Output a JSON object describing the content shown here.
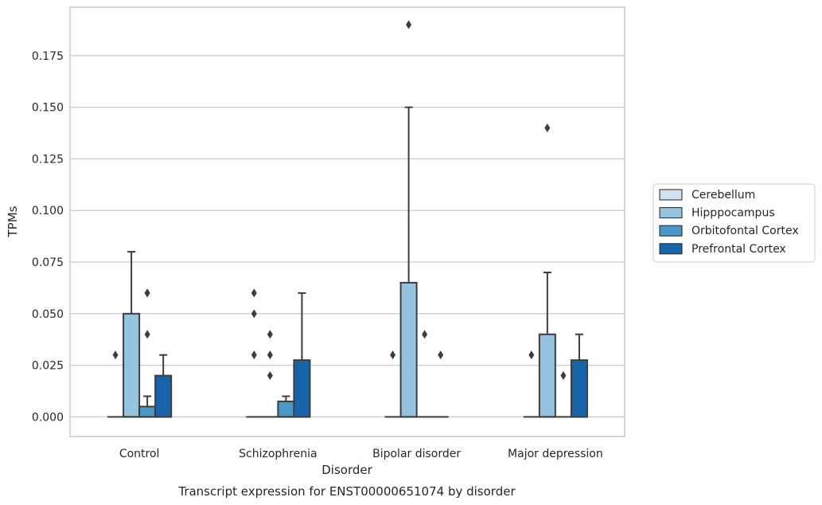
{
  "chart_data": {
    "type": "box",
    "caption": "Transcript expression for ENST00000651074 by disorder",
    "xlabel": "Disorder",
    "ylabel": "TPMs",
    "ylim": [
      -0.0095,
      0.1985
    ],
    "yticks": [
      0.0,
      0.025,
      0.05,
      0.075,
      0.1,
      0.125,
      0.15,
      0.175
    ],
    "ytick_labels": [
      "0.000",
      "0.025",
      "0.050",
      "0.075",
      "0.100",
      "0.125",
      "0.150",
      "0.175"
    ],
    "grid": "horizontal",
    "legend_position": "right",
    "categories": [
      "Control",
      "Schizophrenia",
      "Bipolar disorder",
      "Major depression"
    ],
    "series": [
      {
        "name": "Cerebellum",
        "color": "#d0e1f2",
        "boxes": [
          {
            "q1": 0.0,
            "median": 0.0,
            "q3": 0.0,
            "whisker_low": 0.0,
            "whisker_high": 0.0,
            "outliers": [
              0.03
            ]
          },
          {
            "q1": 0.0,
            "median": 0.0,
            "q3": 0.0,
            "whisker_low": 0.0,
            "whisker_high": 0.0,
            "outliers": [
              0.06,
              0.05,
              0.03
            ]
          },
          {
            "q1": 0.0,
            "median": 0.0,
            "q3": 0.0,
            "whisker_low": 0.0,
            "whisker_high": 0.0,
            "outliers": [
              0.03
            ]
          },
          {
            "q1": 0.0,
            "median": 0.0,
            "q3": 0.0,
            "whisker_low": 0.0,
            "whisker_high": 0.0,
            "outliers": [
              0.03
            ]
          }
        ]
      },
      {
        "name": "Hipppocampus",
        "color": "#94c4df",
        "boxes": [
          {
            "q1": 0.0,
            "median": 0.0,
            "q3": 0.05,
            "whisker_low": 0.0,
            "whisker_high": 0.08,
            "outliers": []
          },
          {
            "q1": 0.0,
            "median": 0.0,
            "q3": 0.0,
            "whisker_low": 0.0,
            "whisker_high": 0.0,
            "outliers": [
              0.04,
              0.03,
              0.02
            ]
          },
          {
            "q1": 0.0,
            "median": 0.0,
            "q3": 0.065,
            "whisker_low": 0.0,
            "whisker_high": 0.15,
            "outliers": [
              0.19
            ]
          },
          {
            "q1": 0.0,
            "median": 0.0,
            "q3": 0.04,
            "whisker_low": 0.0,
            "whisker_high": 0.07,
            "outliers": [
              0.14
            ]
          }
        ]
      },
      {
        "name": "Orbitofontal Cortex",
        "color": "#4a98c9",
        "boxes": [
          {
            "q1": 0.0,
            "median": 0.0,
            "q3": 0.005,
            "whisker_low": 0.0,
            "whisker_high": 0.01,
            "outliers": [
              0.06,
              0.06,
              0.04
            ]
          },
          {
            "q1": 0.0,
            "median": 0.0,
            "q3": 0.0075,
            "whisker_low": 0.0,
            "whisker_high": 0.01,
            "outliers": []
          },
          {
            "q1": 0.0,
            "median": 0.0,
            "q3": 0.0,
            "whisker_low": 0.0,
            "whisker_high": 0.0,
            "outliers": [
              0.04
            ]
          },
          {
            "q1": 0.0,
            "median": 0.0,
            "q3": 0.0,
            "whisker_low": 0.0,
            "whisker_high": 0.0,
            "outliers": [
              0.02
            ]
          }
        ]
      },
      {
        "name": "Prefrontal Cortex",
        "color": "#1764ab",
        "boxes": [
          {
            "q1": 0.0,
            "median": 0.0,
            "q3": 0.02,
            "whisker_low": 0.0,
            "whisker_high": 0.03,
            "outliers": []
          },
          {
            "q1": 0.0,
            "median": 0.0,
            "q3": 0.0275,
            "whisker_low": 0.0,
            "whisker_high": 0.06,
            "outliers": []
          },
          {
            "q1": 0.0,
            "median": 0.0,
            "q3": 0.0,
            "whisker_low": 0.0,
            "whisker_high": 0.0,
            "outliers": [
              0.03
            ]
          },
          {
            "q1": 0.0,
            "median": 0.0,
            "q3": 0.0275,
            "whisker_low": 0.0,
            "whisker_high": 0.04,
            "outliers": []
          }
        ]
      }
    ]
  }
}
